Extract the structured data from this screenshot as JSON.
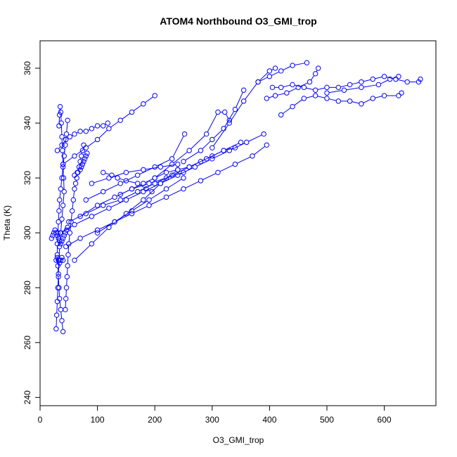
{
  "chart_data": {
    "type": "line",
    "title": "ATOM4 Northbound O3_GMI_trop",
    "xlabel": "O3_GMI_trop",
    "ylabel": "Theta (K)",
    "xlim": [
      0,
      690
    ],
    "ylim": [
      237,
      370
    ],
    "x_ticks": [
      0,
      100,
      200,
      300,
      400,
      500,
      600
    ],
    "y_ticks": [
      240,
      260,
      280,
      300,
      320,
      340,
      360
    ],
    "grid": false,
    "legend": "none",
    "marker": "open-circle",
    "series_color": "#0000ff",
    "series": [
      {
        "x": [
          40,
          38,
          36,
          34,
          33,
          32,
          31,
          30,
          30,
          31,
          32,
          33,
          34,
          36,
          38,
          40,
          42,
          44,
          46,
          48
        ],
        "y": [
          264,
          268,
          272,
          276,
          280,
          284,
          288,
          292,
          296,
          300,
          304,
          308,
          312,
          316,
          320,
          324,
          328,
          332,
          336,
          341
        ]
      },
      {
        "x": [
          28,
          29,
          30,
          31,
          32,
          33,
          34,
          36,
          38,
          40,
          42,
          41,
          40,
          39,
          38,
          37,
          36,
          35,
          34,
          33
        ],
        "y": [
          265,
          270,
          275,
          280,
          285,
          290,
          295,
          300,
          305,
          310,
          315,
          320,
          325,
          330,
          335,
          340,
          344,
          346,
          343,
          339
        ]
      },
      {
        "x": [
          44,
          45,
          46,
          47,
          48,
          49,
          50,
          52,
          54,
          56,
          58,
          60,
          62,
          64,
          66,
          68,
          70,
          72,
          74,
          76
        ],
        "y": [
          272,
          276,
          280,
          284,
          288,
          292,
          296,
          300,
          304,
          308,
          312,
          316,
          318,
          320,
          322,
          324,
          326,
          328,
          330,
          332
        ]
      },
      {
        "x": [
          20,
          22,
          24,
          26,
          28,
          30,
          32,
          34,
          36,
          38,
          40,
          42,
          44,
          46,
          48
        ],
        "y": [
          298,
          299,
          300,
          301,
          300,
          299,
          298,
          297,
          296,
          297,
          298,
          299,
          300,
          301,
          302
        ]
      },
      {
        "x": [
          40,
          60,
          80,
          100,
          120,
          140,
          160,
          180,
          200
        ],
        "y": [
          325,
          328,
          331,
          334,
          338,
          341,
          344,
          347,
          350
        ]
      },
      {
        "x": [
          30,
          38,
          45,
          52,
          60,
          70,
          80,
          90,
          100,
          110,
          118
        ],
        "y": [
          330,
          332,
          334,
          335,
          336,
          337,
          337,
          338,
          339,
          339,
          340
        ]
      },
      {
        "x": [
          35,
          60,
          90,
          120,
          150,
          180,
          210,
          240,
          270,
          300,
          330,
          360,
          390
        ],
        "y": [
          300,
          303,
          306,
          309,
          312,
          315,
          318,
          321,
          324,
          327,
          330,
          333,
          336
        ]
      },
      {
        "x": [
          45,
          70,
          100,
          130,
          160,
          190,
          220,
          250,
          280,
          310,
          340,
          370,
          395
        ],
        "y": [
          295,
          298,
          301,
          304,
          307,
          310,
          313,
          316,
          319,
          322,
          325,
          328,
          332
        ]
      },
      {
        "x": [
          50,
          80,
          110,
          140,
          170,
          200,
          230,
          260,
          290,
          320,
          350
        ],
        "y": [
          304,
          307,
          310,
          312,
          315,
          318,
          321,
          324,
          327,
          330,
          333
        ]
      },
      {
        "x": [
          60,
          90,
          120,
          150,
          180,
          210,
          240
        ],
        "y": [
          290,
          296,
          302,
          307,
          312,
          318,
          323
        ]
      },
      {
        "x": [
          70,
          100,
          130,
          160,
          190,
          220,
          250
        ],
        "y": [
          306,
          310,
          313,
          316,
          318,
          320,
          322
        ]
      },
      {
        "x": [
          80,
          110,
          140,
          170,
          200,
          230,
          252
        ],
        "y": [
          312,
          315,
          318,
          321,
          324,
          327,
          336
        ]
      },
      {
        "x": [
          90,
          120,
          150,
          180,
          210,
          240
        ],
        "y": [
          318,
          320,
          322,
          323,
          324,
          325
        ]
      },
      {
        "x": [
          100,
          130,
          160,
          190,
          220,
          250
        ],
        "y": [
          300,
          304,
          308,
          312,
          316,
          320
        ]
      },
      {
        "x": [
          200,
          230,
          260,
          290,
          310,
          322,
          330
        ],
        "y": [
          320,
          325,
          330,
          336,
          344,
          344,
          341
        ]
      },
      {
        "x": [
          250,
          280,
          300,
          320,
          340,
          355
        ],
        "y": [
          326,
          330,
          334,
          338,
          345,
          352
        ]
      },
      {
        "x": [
          300,
          330,
          355,
          380,
          400,
          410
        ],
        "y": [
          331,
          340,
          348,
          355,
          359,
          360
        ]
      },
      {
        "x": [
          395,
          410,
          430,
          450,
          470,
          480,
          485
        ],
        "y": [
          349,
          350,
          351,
          353,
          355,
          358,
          360
        ]
      },
      {
        "x": [
          405,
          420,
          440,
          460,
          480,
          500,
          520,
          540,
          560,
          580,
          600,
          620,
          640,
          660,
          663
        ],
        "y": [
          353,
          353,
          354,
          353,
          352,
          353,
          353,
          354,
          355,
          356,
          357,
          356,
          355,
          355,
          356
        ]
      },
      {
        "x": [
          420,
          440,
          460,
          480,
          500,
          520,
          540,
          560,
          580,
          600,
          625,
          630
        ],
        "y": [
          343,
          346,
          349,
          350,
          349,
          348,
          348,
          347,
          349,
          350,
          350,
          351
        ]
      },
      {
        "x": [
          380,
          400,
          420,
          440,
          465
        ],
        "y": [
          355,
          357,
          359,
          361,
          362
        ]
      },
      {
        "x": [
          500,
          530,
          560,
          590,
          610,
          625
        ],
        "y": [
          351,
          352,
          353,
          354,
          356,
          357
        ]
      },
      {
        "x": [
          60,
          65,
          70,
          72,
          74,
          76,
          78,
          80,
          82
        ],
        "y": [
          321,
          322,
          323,
          324,
          325,
          326,
          327,
          328,
          329
        ]
      },
      {
        "x": [
          28,
          30,
          32,
          34,
          36,
          38,
          40
        ],
        "y": [
          290,
          291,
          290,
          289,
          290,
          291,
          290
        ]
      },
      {
        "x": [
          110,
          125,
          135,
          150,
          170,
          185,
          195
        ],
        "y": [
          322,
          321,
          320,
          319,
          318,
          316,
          315
        ]
      },
      {
        "x": [
          140,
          160,
          180,
          200,
          220,
          240,
          260,
          280,
          300,
          320,
          340
        ],
        "y": [
          314,
          316,
          318,
          320,
          322,
          323,
          324,
          326,
          328,
          330,
          331
        ]
      }
    ]
  }
}
